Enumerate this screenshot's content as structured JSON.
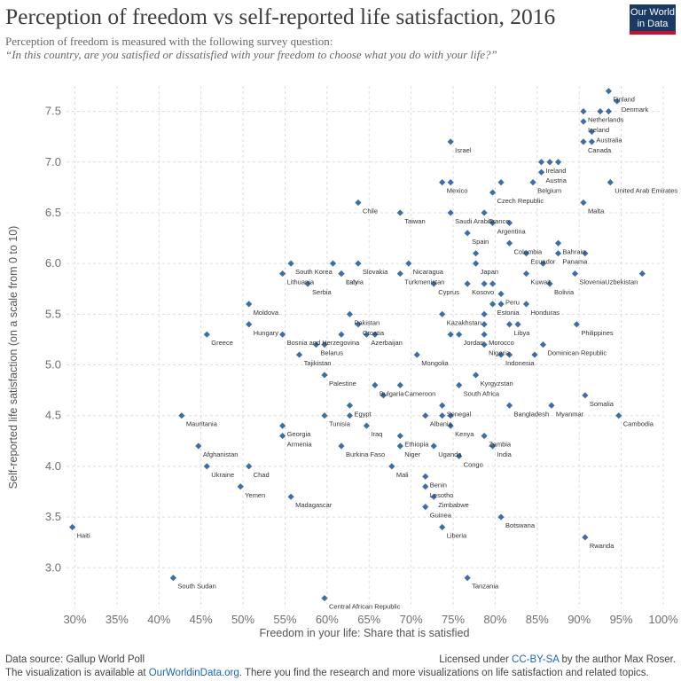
{
  "header": {
    "title": "Perception of freedom vs self-reported life satisfaction, 2016",
    "subtitle": "Perception of freedom is measured with the following survey question:",
    "question": "“In this country, are you satisfied or dissatisfied with your freedom to choose what you do with your life?”",
    "logo_line1": "Our World",
    "logo_line2": "in Data"
  },
  "footer": {
    "source": "Data source: Gallup World Poll",
    "license_prefix": "Licensed under ",
    "license_link": "CC-BY-SA",
    "license_suffix": " by the author Max Roser.",
    "visualization_prefix": "The visualization is available at ",
    "visualization_link": "OurWorldinData.org",
    "visualization_suffix": ". There you find the research and more visualizations on life satisfaction and related topics."
  },
  "colors": {
    "marker": "#3e6ea8",
    "grid": "#dddddd",
    "axis_text": "#6f6f6f",
    "label_text": "#333333"
  },
  "chart_data": {
    "type": "scatter",
    "xlabel": "Freedom in your life: Share that is satisfied",
    "ylabel": "Self-reported life satisfaction (on a scale from 0 to 10)",
    "xlim": [
      0.29,
      1.0
    ],
    "ylim": [
      2.6,
      7.75
    ],
    "x_ticks": [
      0.3,
      0.35,
      0.4,
      0.45,
      0.5,
      0.55,
      0.6,
      0.65,
      0.7,
      0.75,
      0.8,
      0.85,
      0.9,
      0.95,
      1.0
    ],
    "x_tick_labels": [
      "30%",
      "35%",
      "40%",
      "45%",
      "50%",
      "55%",
      "60%",
      "65%",
      "70%",
      "75%",
      "80%",
      "85%",
      "90%",
      "95%",
      "100%"
    ],
    "y_ticks": [
      3.0,
      3.5,
      4.0,
      4.5,
      5.0,
      5.5,
      6.0,
      6.5,
      7.0,
      7.5
    ],
    "y_tick_labels": [
      "3.0",
      "3.5",
      "4.0",
      "4.5",
      "5.0",
      "5.5",
      "6.0",
      "6.5",
      "7.0",
      "7.5"
    ],
    "grid": true,
    "labeled_points": [
      {
        "label": "Finland",
        "x": 0.935,
        "y": 7.7
      },
      {
        "label": "Denmark",
        "x": 0.945,
        "y": 7.6
      },
      {
        "label": "Netherlands",
        "x": 0.905,
        "y": 7.5
      },
      {
        "label": "Iceland",
        "x": 0.905,
        "y": 7.4
      },
      {
        "label": "Australia",
        "x": 0.915,
        "y": 7.3
      },
      {
        "label": "Canada",
        "x": 0.905,
        "y": 7.2
      },
      {
        "label": "Israel",
        "x": 0.747,
        "y": 7.2
      },
      {
        "label": "Ireland",
        "x": 0.855,
        "y": 7.0
      },
      {
        "label": "Austria",
        "x": 0.855,
        "y": 6.9
      },
      {
        "label": "Belgium",
        "x": 0.845,
        "y": 6.8
      },
      {
        "label": "Mexico",
        "x": 0.737,
        "y": 6.8
      },
      {
        "label": "United Arab Emirates",
        "x": 0.937,
        "y": 6.8
      },
      {
        "label": "Czech Republic",
        "x": 0.797,
        "y": 6.7
      },
      {
        "label": "Chile",
        "x": 0.637,
        "y": 6.6
      },
      {
        "label": "Malta",
        "x": 0.905,
        "y": 6.6
      },
      {
        "label": "Taiwan",
        "x": 0.687,
        "y": 6.5
      },
      {
        "label": "Saudi Arabia",
        "x": 0.747,
        "y": 6.5
      },
      {
        "label": "France",
        "x": 0.787,
        "y": 6.5
      },
      {
        "label": "Argentina",
        "x": 0.797,
        "y": 6.4
      },
      {
        "label": "Spain",
        "x": 0.767,
        "y": 6.3
      },
      {
        "label": "Colombia",
        "x": 0.817,
        "y": 6.2
      },
      {
        "label": "Bahrain",
        "x": 0.875,
        "y": 6.2
      },
      {
        "label": "Ecuador",
        "x": 0.837,
        "y": 6.1
      },
      {
        "label": "Panama",
        "x": 0.875,
        "y": 6.1
      },
      {
        "label": "South Korea",
        "x": 0.557,
        "y": 6.0
      },
      {
        "label": "Slovakia",
        "x": 0.637,
        "y": 6.0
      },
      {
        "label": "Nicaragua",
        "x": 0.697,
        "y": 6.0
      },
      {
        "label": "Japan",
        "x": 0.777,
        "y": 6.0
      },
      {
        "label": "Italy",
        "x": 0.617,
        "y": 5.9
      },
      {
        "label": "Lithuania",
        "x": 0.547,
        "y": 5.9
      },
      {
        "label": "Latvia",
        "x": 0.617,
        "y": 5.9
      },
      {
        "label": "Turkmenistan",
        "x": 0.687,
        "y": 5.9
      },
      {
        "label": "Kuwait",
        "x": 0.837,
        "y": 5.9
      },
      {
        "label": "Slovenia",
        "x": 0.895,
        "y": 5.9
      },
      {
        "label": "Uzbekistan",
        "x": 0.975,
        "y": 5.9
      },
      {
        "label": "Serbia",
        "x": 0.577,
        "y": 5.8
      },
      {
        "label": "Cyprus",
        "x": 0.727,
        "y": 5.8
      },
      {
        "label": "Kosovo",
        "x": 0.767,
        "y": 5.8
      },
      {
        "label": "Bolivia",
        "x": 0.865,
        "y": 5.8
      },
      {
        "label": "Peru",
        "x": 0.807,
        "y": 5.7
      },
      {
        "label": "Estonia",
        "x": 0.797,
        "y": 5.6
      },
      {
        "label": "Moldova",
        "x": 0.507,
        "y": 5.6
      },
      {
        "label": "Honduras",
        "x": 0.837,
        "y": 5.6
      },
      {
        "label": "Pakistan",
        "x": 0.627,
        "y": 5.5
      },
      {
        "label": "Kazakhstan",
        "x": 0.737,
        "y": 5.5
      },
      {
        "label": "Croatia",
        "x": 0.637,
        "y": 5.4
      },
      {
        "label": "Hungary",
        "x": 0.507,
        "y": 5.4
      },
      {
        "label": "Libya",
        "x": 0.817,
        "y": 5.4
      },
      {
        "label": "Philippines",
        "x": 0.897,
        "y": 5.4
      },
      {
        "label": "Greece",
        "x": 0.457,
        "y": 5.3
      },
      {
        "label": "Bosnia and Herzegovina",
        "x": 0.547,
        "y": 5.3
      },
      {
        "label": "Morocco",
        "x": 0.787,
        "y": 5.3
      },
      {
        "label": "Azerbaijan",
        "x": 0.647,
        "y": 5.3
      },
      {
        "label": "Jordan",
        "x": 0.757,
        "y": 5.3
      },
      {
        "label": "Belarus",
        "x": 0.587,
        "y": 5.2
      },
      {
        "label": "Dominican Republic",
        "x": 0.857,
        "y": 5.2
      },
      {
        "label": "Nigeria",
        "x": 0.787,
        "y": 5.2
      },
      {
        "label": "Tajikistan",
        "x": 0.567,
        "y": 5.1
      },
      {
        "label": "Mongolia",
        "x": 0.707,
        "y": 5.1
      },
      {
        "label": "Indonesia",
        "x": 0.807,
        "y": 5.1
      },
      {
        "label": "Kyrgyzstan",
        "x": 0.777,
        "y": 4.9
      },
      {
        "label": "Palestine",
        "x": 0.597,
        "y": 4.9
      },
      {
        "label": "Bulgaria",
        "x": 0.657,
        "y": 4.8
      },
      {
        "label": "Cameroon",
        "x": 0.687,
        "y": 4.8
      },
      {
        "label": "South Africa",
        "x": 0.757,
        "y": 4.8
      },
      {
        "label": "Somalia",
        "x": 0.907,
        "y": 4.7
      },
      {
        "label": "Egypt",
        "x": 0.627,
        "y": 4.6
      },
      {
        "label": "Senegal",
        "x": 0.737,
        "y": 4.6
      },
      {
        "label": "Bangladesh",
        "x": 0.817,
        "y": 4.6
      },
      {
        "label": "Myanmar",
        "x": 0.867,
        "y": 4.6
      },
      {
        "label": "Mauritania",
        "x": 0.427,
        "y": 4.5
      },
      {
        "label": "Tunisia",
        "x": 0.597,
        "y": 4.5
      },
      {
        "label": "Albania",
        "x": 0.717,
        "y": 4.5
      },
      {
        "label": "Cambodia",
        "x": 0.947,
        "y": 4.5
      },
      {
        "label": "Georgia",
        "x": 0.547,
        "y": 4.4
      },
      {
        "label": "Iraq",
        "x": 0.647,
        "y": 4.4
      },
      {
        "label": "Kenya",
        "x": 0.747,
        "y": 4.4
      },
      {
        "label": "Armenia",
        "x": 0.547,
        "y": 4.3
      },
      {
        "label": "Ethiopia",
        "x": 0.687,
        "y": 4.3
      },
      {
        "label": "Zambia",
        "x": 0.787,
        "y": 4.3
      },
      {
        "label": "Afghanistan",
        "x": 0.447,
        "y": 4.2
      },
      {
        "label": "Burkina Faso",
        "x": 0.617,
        "y": 4.2
      },
      {
        "label": "Niger",
        "x": 0.687,
        "y": 4.2
      },
      {
        "label": "Uganda",
        "x": 0.727,
        "y": 4.2
      },
      {
        "label": "India",
        "x": 0.797,
        "y": 4.2
      },
      {
        "label": "Congo",
        "x": 0.757,
        "y": 4.1
      },
      {
        "label": "Ukraine",
        "x": 0.457,
        "y": 4.0
      },
      {
        "label": "Chad",
        "x": 0.507,
        "y": 4.0
      },
      {
        "label": "Mali",
        "x": 0.677,
        "y": 4.0
      },
      {
        "label": "Benin",
        "x": 0.717,
        "y": 3.9
      },
      {
        "label": "Yemen",
        "x": 0.497,
        "y": 3.8
      },
      {
        "label": "Lesotho",
        "x": 0.717,
        "y": 3.8
      },
      {
        "label": "Madagascar",
        "x": 0.557,
        "y": 3.7
      },
      {
        "label": "Zimbabwe",
        "x": 0.727,
        "y": 3.7
      },
      {
        "label": "Guinea",
        "x": 0.717,
        "y": 3.6
      },
      {
        "label": "Botswana",
        "x": 0.807,
        "y": 3.5
      },
      {
        "label": "Haiti",
        "x": 0.297,
        "y": 3.4
      },
      {
        "label": "Liberia",
        "x": 0.737,
        "y": 3.4
      },
      {
        "label": "Rwanda",
        "x": 0.907,
        "y": 3.3
      },
      {
        "label": "South Sudan",
        "x": 0.417,
        "y": 2.9
      },
      {
        "label": "Tanzania",
        "x": 0.767,
        "y": 2.9
      },
      {
        "label": "Central African Republic",
        "x": 0.597,
        "y": 2.7
      }
    ],
    "unlabeled_points": [
      {
        "x": 0.925,
        "y": 7.5
      },
      {
        "x": 0.935,
        "y": 7.5
      },
      {
        "x": 0.915,
        "y": 7.2
      },
      {
        "x": 0.865,
        "y": 7.0
      },
      {
        "x": 0.875,
        "y": 7.0
      },
      {
        "x": 0.747,
        "y": 6.8
      },
      {
        "x": 0.807,
        "y": 6.8
      },
      {
        "x": 0.817,
        "y": 6.4
      },
      {
        "x": 0.777,
        "y": 6.1
      },
      {
        "x": 0.907,
        "y": 6.1
      },
      {
        "x": 0.857,
        "y": 6.0
      },
      {
        "x": 0.607,
        "y": 6.0
      },
      {
        "x": 0.797,
        "y": 5.8
      },
      {
        "x": 0.787,
        "y": 5.8
      },
      {
        "x": 0.807,
        "y": 5.6
      },
      {
        "x": 0.787,
        "y": 5.5
      },
      {
        "x": 0.787,
        "y": 5.4
      },
      {
        "x": 0.827,
        "y": 5.4
      },
      {
        "x": 0.617,
        "y": 5.3
      },
      {
        "x": 0.657,
        "y": 5.3
      },
      {
        "x": 0.747,
        "y": 5.3
      },
      {
        "x": 0.597,
        "y": 5.2
      },
      {
        "x": 0.817,
        "y": 5.1
      },
      {
        "x": 0.847,
        "y": 5.1
      },
      {
        "x": 0.667,
        "y": 4.7
      },
      {
        "x": 0.627,
        "y": 4.5
      },
      {
        "x": 0.737,
        "y": 4.5
      },
      {
        "x": 0.747,
        "y": 4.5
      }
    ]
  }
}
